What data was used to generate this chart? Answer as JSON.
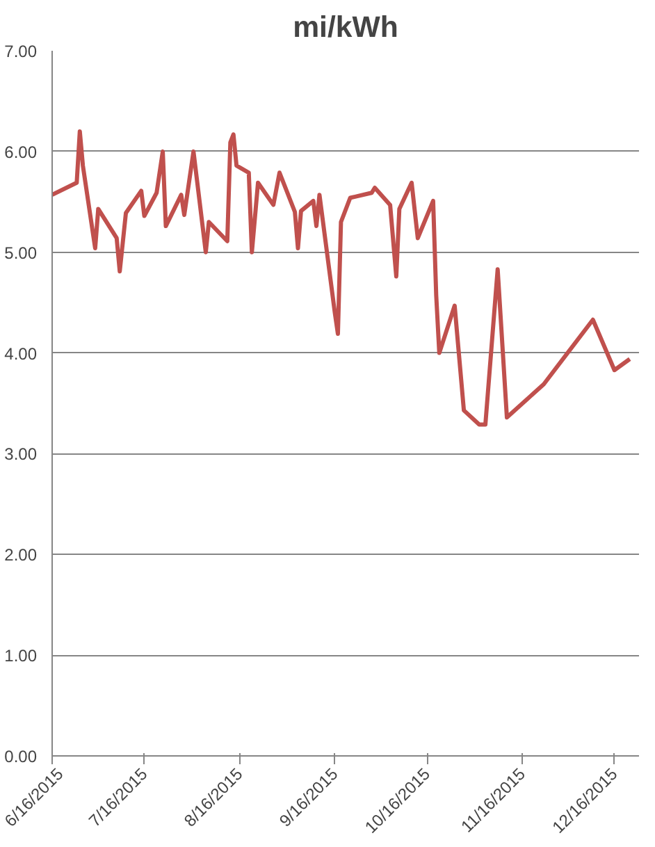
{
  "chart_data": {
    "type": "line",
    "title": "mi/kWh",
    "x": [
      "2015-06-16",
      "2015-06-24",
      "2015-06-25",
      "2015-06-26",
      "2015-06-30",
      "2015-07-01",
      "2015-07-07",
      "2015-07-08",
      "2015-07-10",
      "2015-07-15",
      "2015-07-16",
      "2015-07-20",
      "2015-07-22",
      "2015-07-23",
      "2015-07-28",
      "2015-07-29",
      "2015-08-01",
      "2015-08-05",
      "2015-08-06",
      "2015-08-12",
      "2015-08-13",
      "2015-08-14",
      "2015-08-15",
      "2015-08-19",
      "2015-08-20",
      "2015-08-22",
      "2015-08-27",
      "2015-08-29",
      "2015-09-03",
      "2015-09-04",
      "2015-09-05",
      "2015-09-09",
      "2015-09-10",
      "2015-09-11",
      "2015-09-16",
      "2015-09-17",
      "2015-09-18",
      "2015-09-21",
      "2015-09-28",
      "2015-09-29",
      "2015-10-04",
      "2015-10-06",
      "2015-10-07",
      "2015-10-11",
      "2015-10-13",
      "2015-10-18",
      "2015-10-19",
      "2015-10-20",
      "2015-10-25",
      "2015-10-28",
      "2015-11-02",
      "2015-11-04",
      "2015-11-08",
      "2015-11-11",
      "2015-11-23",
      "2015-12-09",
      "2015-12-16",
      "2015-12-21"
    ],
    "series": [
      {
        "color": "#c0504d",
        "values": [
          5.57,
          5.69,
          6.2,
          5.86,
          5.04,
          5.43,
          5.14,
          4.81,
          5.39,
          5.61,
          5.36,
          5.59,
          6.0,
          5.26,
          5.57,
          5.37,
          6.0,
          5.0,
          5.3,
          5.11,
          6.09,
          6.17,
          5.86,
          5.79,
          5.0,
          5.69,
          5.47,
          5.79,
          5.4,
          5.04,
          5.41,
          5.51,
          5.26,
          5.57,
          4.4,
          4.19,
          5.3,
          5.54,
          5.59,
          5.64,
          5.47,
          4.76,
          5.43,
          5.69,
          5.14,
          5.51,
          4.57,
          4.0,
          4.47,
          3.43,
          3.29,
          3.29,
          4.83,
          3.36,
          3.69,
          4.33,
          3.83,
          3.94
        ]
      }
    ],
    "xlim": [
      "2015-06-16",
      "2015-12-24"
    ],
    "xticks": [
      {
        "value": "2015-06-16",
        "label": "6/16/2015"
      },
      {
        "value": "2015-07-16",
        "label": "7/16/2015"
      },
      {
        "value": "2015-08-16",
        "label": "8/16/2015"
      },
      {
        "value": "2015-09-16",
        "label": "9/16/2015"
      },
      {
        "value": "2015-10-16",
        "label": "10/16/2015"
      },
      {
        "value": "2015-11-16",
        "label": "11/16/2015"
      },
      {
        "value": "2015-12-16",
        "label": "12/16/2015"
      }
    ],
    "ylim": [
      0,
      7
    ],
    "yticks": [
      {
        "value": 0,
        "label": "0.00"
      },
      {
        "value": 1,
        "label": "1.00"
      },
      {
        "value": 2,
        "label": "2.00"
      },
      {
        "value": 3,
        "label": "3.00"
      },
      {
        "value": 4,
        "label": "4.00"
      },
      {
        "value": 5,
        "label": "5.00"
      },
      {
        "value": 6,
        "label": "6.00"
      },
      {
        "value": 7,
        "label": "7.00"
      }
    ],
    "grid": "y",
    "marker": "none",
    "line_style": "solid"
  }
}
